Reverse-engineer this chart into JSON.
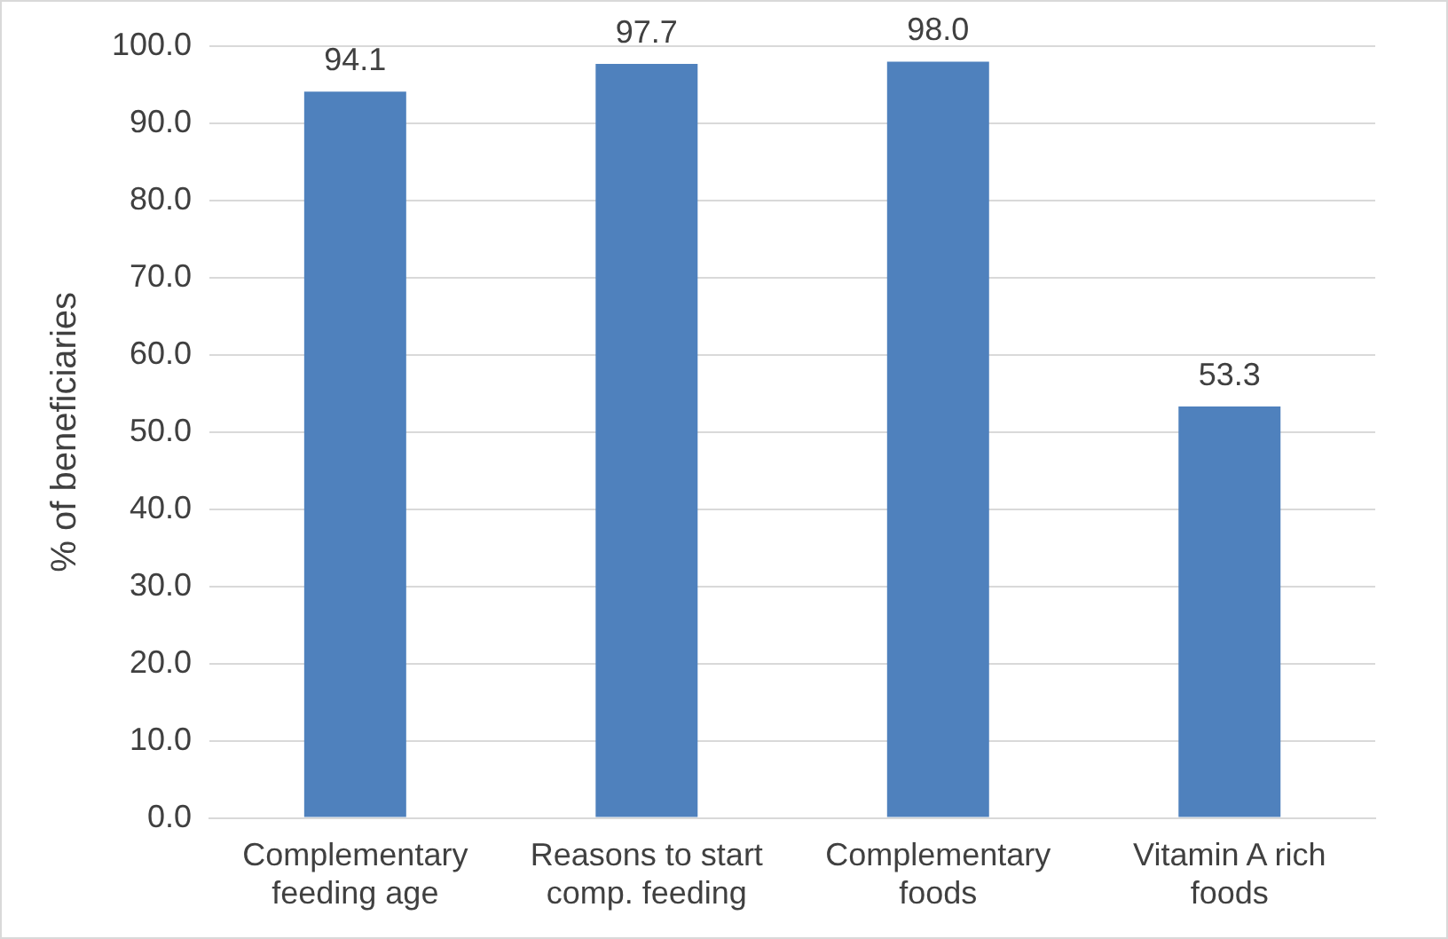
{
  "chart_data": {
    "type": "bar",
    "ylabel": "% of beneficiaries",
    "categories": [
      "Complementary feeding age",
      "Reasons to start comp. feeding",
      "Complementary foods",
      "Vitamin A rich foods"
    ],
    "values": [
      94.1,
      97.7,
      98.0,
      53.3
    ],
    "color": "#4f81bd",
    "ylim": [
      0,
      100
    ],
    "yticks": [
      {
        "value": 0,
        "label": "0.0"
      },
      {
        "value": 10,
        "label": "10.0"
      },
      {
        "value": 20,
        "label": "20.0"
      },
      {
        "value": 30,
        "label": "30.0"
      },
      {
        "value": 40,
        "label": "40.0"
      },
      {
        "value": 50,
        "label": "50.0"
      },
      {
        "value": 60,
        "label": "60.0"
      },
      {
        "value": 70,
        "label": "70.0"
      },
      {
        "value": 80,
        "label": "80.0"
      },
      {
        "value": 90,
        "label": "90.0"
      },
      {
        "value": 100,
        "label": "100.0"
      }
    ],
    "value_labels": [
      "94.1",
      "97.7",
      "98.0",
      "53.3"
    ],
    "grid": "y",
    "legend": false
  }
}
